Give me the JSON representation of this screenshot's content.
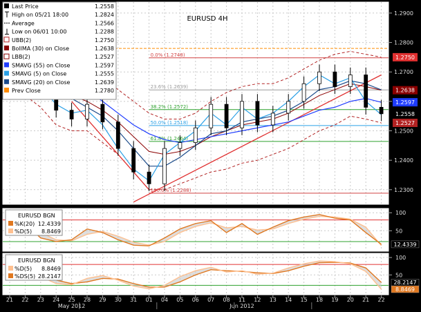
{
  "title": "EURUSD 4H",
  "colors": {
    "bg": "#ffffff",
    "grid": "#c8c8c8",
    "candle": "#000000",
    "bb": "#b22222",
    "lbb": "#8b0000",
    "sma55": "#1e3cff",
    "sma5": "#2aa0e6",
    "sma20": "#1a4a8a",
    "prev_close": "#ff8c00",
    "fib": "#d04040",
    "fib_mid": "#9a9a9a",
    "fib_green": "#2ca02c",
    "trend": "#e03030",
    "stoch_k": "#e07820",
    "stoch_d": "#ffc090",
    "stoch_fill": "#c8c8c8",
    "level_red": "#e03030",
    "level_green": "#2ca02c"
  },
  "legend": [
    {
      "icon": "square-black",
      "label": "Last Price",
      "value": "1.2558"
    },
    {
      "icon": "high-tick",
      "label": "High on 05/21 18:00",
      "value": "1.2824"
    },
    {
      "icon": "average-dash",
      "label": "Average",
      "value": "1.2566"
    },
    {
      "icon": "low-tick",
      "label": "Low on 06/01 10:00",
      "value": "1.2288"
    },
    {
      "icon": "square-outline-red",
      "label": "UBB(2)",
      "value": "1.2750"
    },
    {
      "icon": "square-darkred",
      "label": "BollMA (30) on Close",
      "value": "1.2638"
    },
    {
      "icon": "square-outline-darkred",
      "label": "LBB(2)",
      "value": "1.2527"
    },
    {
      "icon": "square-blue",
      "label": "SMAVG (55) on Close",
      "value": "1.2597"
    },
    {
      "icon": "square-lightblue",
      "label": "SMAVG (5) on Close",
      "value": "1.2555"
    },
    {
      "icon": "square-navy",
      "label": "SMAVG (20) on Close",
      "value": "1.2639"
    },
    {
      "icon": "square-orange",
      "label": "Prev Close",
      "value": "1.2780"
    }
  ],
  "price_axis": {
    "ticks": [
      "1.2900",
      "1.2800",
      "1.2700",
      "1.2600",
      "1.2500",
      "1.2400",
      "1.2300"
    ],
    "tick_values": [
      1.29,
      1.28,
      1.27,
      1.26,
      1.25,
      1.24,
      1.23
    ],
    "range": [
      1.2255,
      1.2935
    ],
    "tags": [
      {
        "value": 1.275,
        "label": "1.2750",
        "color": "#e03030"
      },
      {
        "value": 1.2638,
        "label": "1.2638",
        "color": "#8b0000"
      },
      {
        "value": 1.2597,
        "label": "1.2597",
        "color": "#1e3cff"
      },
      {
        "value": 1.2558,
        "label": "1.2558",
        "color": "#000000"
      },
      {
        "value": 1.2527,
        "label": "1.2527",
        "color": "#b22222"
      }
    ]
  },
  "fib_levels": [
    {
      "label": "0.0% (1.2748)",
      "value": 1.2748,
      "color": "#d04040"
    },
    {
      "label": "23.6% (1.2639)",
      "value": 1.2639,
      "color": "#9a9a9a"
    },
    {
      "label": "38.2% (1.2572)",
      "value": 1.2572,
      "color": "#2ca02c"
    },
    {
      "label": "50.0% (1.2518)",
      "value": 1.2518,
      "color": "#2aa0e6"
    },
    {
      "label": "61.8% (1.2464)",
      "value": 1.2464,
      "color": "#2ca02c"
    },
    {
      "label": "100.0% (1.2288)",
      "value": 1.2288,
      "color": "#d04040"
    }
  ],
  "x_axis": {
    "days": [
      "21",
      "22",
      "23",
      "24",
      "25",
      "28",
      "29",
      "30",
      "31",
      "01",
      "04",
      "05",
      "06",
      "07",
      "08",
      "11",
      "12",
      "13",
      "14",
      "15",
      "18",
      "19",
      "20",
      "21",
      "22"
    ],
    "months": [
      {
        "label": "May 2012",
        "day_index": 4
      },
      {
        "label": "Jun 2012",
        "day_index": 15
      }
    ]
  },
  "panels": {
    "stoch1": {
      "name": "EURUSD BGN",
      "rows": [
        {
          "label": "%K(20)",
          "value": "12.4339",
          "color": "#e07820"
        },
        {
          "label": "%D(5)",
          "value": "8.8469",
          "color": "#ffc090"
        }
      ],
      "ticks": [
        "100",
        "50"
      ],
      "tick_values": [
        100,
        50
      ],
      "range": [
        -5,
        110
      ],
      "levels": [
        {
          "value": 80,
          "color": "#e03030"
        },
        {
          "value": 20,
          "color": "#2ca02c"
        }
      ],
      "tags": [
        {
          "value": 12.4339,
          "label": "12.4339",
          "color": "#000000"
        }
      ]
    },
    "stoch2": {
      "name": "EURUSD BGN",
      "rows": [
        {
          "label": "%D(5)",
          "value": "8.8469",
          "color": "#ffc090"
        },
        {
          "label": "%DS(5)",
          "value": "28.2147",
          "color": "#e07820"
        }
      ],
      "ticks": [
        "100",
        "50"
      ],
      "tick_values": [
        100,
        50
      ],
      "range": [
        -5,
        110
      ],
      "levels": [
        {
          "value": 80,
          "color": "#e03030"
        },
        {
          "value": 20,
          "color": "#2ca02c"
        }
      ],
      "tags": [
        {
          "value": 28.2147,
          "label": "28.2147",
          "color": "#000000"
        },
        {
          "value": 8.8469,
          "label": "8.8469",
          "color": "#e07820"
        }
      ]
    }
  },
  "chart_data": {
    "type": "line",
    "title": "EURUSD 4H",
    "categories": [
      "21",
      "22",
      "23",
      "24",
      "25",
      "28",
      "29",
      "30",
      "31",
      "01",
      "04",
      "05",
      "06",
      "07",
      "08",
      "11",
      "12",
      "13",
      "14",
      "15",
      "18",
      "19",
      "20",
      "21",
      "22"
    ],
    "series": [
      {
        "name": "Last Price",
        "values": [
          1.278,
          1.274,
          1.265,
          1.257,
          1.254,
          1.259,
          1.253,
          1.244,
          1.236,
          1.232,
          1.244,
          1.246,
          1.251,
          1.259,
          1.251,
          1.26,
          1.252,
          1.256,
          1.26,
          1.266,
          1.27,
          1.265,
          1.269,
          1.258,
          1.2558
        ]
      },
      {
        "name": "BollMA (30) on Close",
        "values": [
          1.274,
          1.272,
          1.269,
          1.265,
          1.262,
          1.26,
          1.257,
          1.253,
          1.248,
          1.243,
          1.242,
          1.243,
          1.245,
          1.248,
          1.25,
          1.252,
          1.253,
          1.254,
          1.256,
          1.259,
          1.262,
          1.264,
          1.266,
          1.265,
          1.2638
        ]
      },
      {
        "name": "UBB(2)",
        "values": [
          1.283,
          1.282,
          1.28,
          1.278,
          1.274,
          1.27,
          1.268,
          1.264,
          1.26,
          1.256,
          1.254,
          1.254,
          1.256,
          1.26,
          1.263,
          1.265,
          1.266,
          1.266,
          1.268,
          1.271,
          1.274,
          1.276,
          1.277,
          1.276,
          1.275
        ]
      },
      {
        "name": "LBB(2)",
        "values": [
          1.265,
          1.262,
          1.258,
          1.252,
          1.25,
          1.25,
          1.246,
          1.242,
          1.236,
          1.23,
          1.23,
          1.232,
          1.234,
          1.236,
          1.237,
          1.239,
          1.24,
          1.242,
          1.244,
          1.247,
          1.25,
          1.252,
          1.255,
          1.254,
          1.2527
        ]
      },
      {
        "name": "SMAVG (55) on Close",
        "values": [
          1.276,
          1.274,
          1.272,
          1.269,
          1.266,
          1.264,
          1.26,
          1.256,
          1.252,
          1.249,
          1.247,
          1.246,
          1.247,
          1.248,
          1.249,
          1.25,
          1.251,
          1.252,
          1.253,
          1.255,
          1.257,
          1.258,
          1.26,
          1.261,
          1.2597
        ]
      },
      {
        "name": "SMAVG (5) on Close",
        "values": [
          1.277,
          1.272,
          1.265,
          1.259,
          1.256,
          1.257,
          1.252,
          1.244,
          1.237,
          1.233,
          1.242,
          1.246,
          1.25,
          1.256,
          1.252,
          1.258,
          1.254,
          1.256,
          1.26,
          1.265,
          1.269,
          1.266,
          1.268,
          1.26,
          1.2555
        ]
      },
      {
        "name": "SMAVG (20) on Close",
        "values": [
          1.279,
          1.276,
          1.271,
          1.265,
          1.261,
          1.258,
          1.255,
          1.25,
          1.244,
          1.238,
          1.238,
          1.241,
          1.245,
          1.249,
          1.25,
          1.253,
          1.254,
          1.255,
          1.257,
          1.26,
          1.264,
          1.265,
          1.267,
          1.266,
          1.2639
        ]
      }
    ],
    "high": {
      "label": "High on 05/21 18:00",
      "value": 1.2824
    },
    "low": {
      "label": "Low on 06/01 10:00",
      "value": 1.2288
    },
    "average": 1.2566,
    "prev_close": 1.278,
    "trendlines": [
      {
        "from": {
          "x": "31",
          "y": 1.2258
        },
        "to": {
          "x": "22",
          "y": 1.269
        }
      },
      {
        "from": {
          "x": "25",
          "y": 1.26
        },
        "to": {
          "x": "01",
          "y": 1.23
        }
      }
    ],
    "indicator_panels": [
      {
        "name": "EURUSD BGN",
        "series": [
          {
            "name": "%K(20)",
            "values": [
              80,
              70,
              30,
              20,
              25,
              55,
              45,
              25,
              10,
              8,
              30,
              55,
              70,
              78,
              45,
              70,
              40,
              60,
              78,
              88,
              95,
              85,
              80,
              45,
              12.43
            ]
          },
          {
            "name": "%D(5)",
            "values": [
              85,
              75,
              45,
              25,
              22,
              40,
              48,
              35,
              18,
              10,
              20,
              45,
              62,
              72,
              58,
              62,
              52,
              55,
              70,
              82,
              90,
              88,
              82,
              60,
              8.85
            ]
          }
        ],
        "ylim": [
          0,
          100
        ]
      },
      {
        "name": "EURUSD BGN",
        "series": [
          {
            "name": "%D(5)",
            "values": [
              85,
              75,
              45,
              25,
              22,
              40,
              48,
              35,
              18,
              10,
              20,
              45,
              62,
              72,
              58,
              62,
              52,
              55,
              70,
              82,
              90,
              88,
              82,
              60,
              8.85
            ]
          },
          {
            "name": "%DS(5)",
            "values": [
              80,
              78,
              60,
              35,
              25,
              30,
              40,
              38,
              25,
              15,
              15,
              30,
              50,
              65,
              62,
              60,
              56,
              54,
              62,
              75,
              85,
              86,
              84,
              70,
              28.21
            ]
          }
        ],
        "ylim": [
          0,
          100
        ]
      }
    ]
  }
}
